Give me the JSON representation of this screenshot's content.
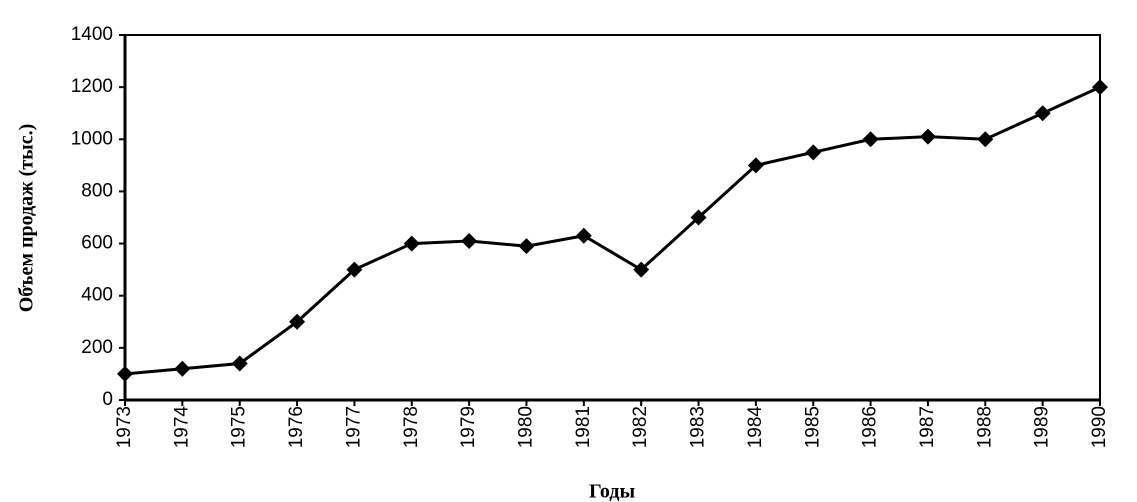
{
  "chart_data": {
    "type": "line",
    "x_label": "Годы",
    "y_label": "Объем продаж (тыс.)",
    "categories": [
      "1973",
      "1974",
      "1975",
      "1976",
      "1977",
      "1978",
      "1979",
      "1980",
      "1981",
      "1982",
      "1983",
      "1984",
      "1985",
      "1986",
      "1987",
      "1988",
      "1989",
      "1990"
    ],
    "series": [
      {
        "name": "Объем продаж",
        "color": "#000000",
        "values": [
          100,
          120,
          140,
          300,
          500,
          600,
          610,
          590,
          630,
          500,
          700,
          900,
          950,
          1000,
          1010,
          1000,
          1100,
          1200
        ]
      }
    ],
    "ylim": [
      0,
      1400
    ],
    "yticks": [
      0,
      200,
      400,
      600,
      800,
      1000,
      1200,
      1400
    ],
    "grid": false
  }
}
